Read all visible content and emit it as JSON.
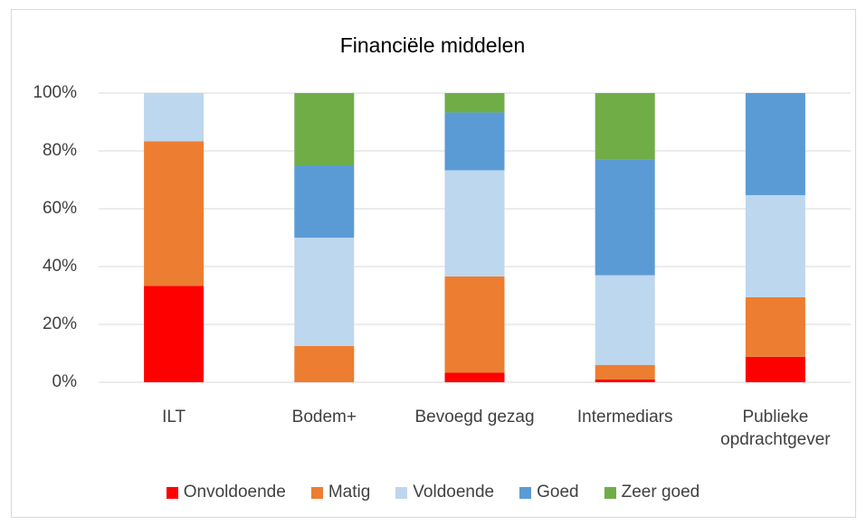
{
  "chart_data": {
    "type": "stacked_bar",
    "title": "Financiële middelen",
    "categories": [
      "ILT",
      "Bodem+",
      "Bevoegd gezag",
      "Intermediars",
      "Publieke opdrachtgever"
    ],
    "series": [
      {
        "name": "Onvoldoende",
        "color": "#ff0000",
        "values": [
          33.3,
          0,
          3.3,
          1,
          8.8
        ]
      },
      {
        "name": "Matig",
        "color": "#ed7d31",
        "values": [
          50,
          12.5,
          33.3,
          5,
          20.6
        ]
      },
      {
        "name": "Voldoende",
        "color": "#bdd7ee",
        "values": [
          16.7,
          37.5,
          36.7,
          31,
          35.3
        ]
      },
      {
        "name": "Goed",
        "color": "#5b9bd5",
        "values": [
          0,
          25,
          20,
          40,
          35.3
        ]
      },
      {
        "name": "Zeer goed",
        "color": "#70ad47",
        "values": [
          0,
          25,
          6.7,
          23,
          0
        ]
      }
    ],
    "ylim": [
      0,
      100
    ],
    "yticks": [
      {
        "value": 0,
        "label": "0%"
      },
      {
        "value": 20,
        "label": "20%"
      },
      {
        "value": 40,
        "label": "40%"
      },
      {
        "value": 60,
        "label": "60%"
      },
      {
        "value": 80,
        "label": "80%"
      },
      {
        "value": 100,
        "label": "100%"
      }
    ],
    "grid": true,
    "legend": "bottom"
  }
}
